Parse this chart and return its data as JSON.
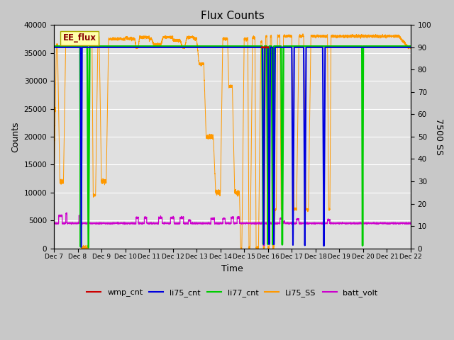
{
  "title": "Flux Counts",
  "xlabel": "Time",
  "ylabel_left": "Counts",
  "ylabel_right": "7500 SS",
  "ylim_left": [
    0,
    40000
  ],
  "ylim_right": [
    0,
    100
  ],
  "annotation_text": "EE_flux",
  "bg_color": "#c8c8c8",
  "plot_bg_color": "#e0e0e0",
  "colors": {
    "wmp_cnt": "#cc0000",
    "li75_cnt": "#0000dd",
    "li77_cnt": "#00cc00",
    "Li75_SS": "#ff9900",
    "batt_volt": "#cc00cc"
  },
  "xtick_labels": [
    "Dec 7",
    "Dec 8",
    "Dec 9",
    "Dec 10",
    "Dec 11",
    "Dec 12",
    "Dec 13",
    "Dec 14",
    "Dec 15",
    "Dec 16",
    "Dec 17",
    "Dec 18",
    "Dec 19",
    "Dec 20",
    "Dec 21",
    "Dec 22"
  ],
  "yticks_left": [
    0,
    5000,
    10000,
    15000,
    20000,
    25000,
    30000,
    35000,
    40000
  ],
  "yticks_right": [
    0,
    10,
    20,
    30,
    40,
    50,
    60,
    70,
    80,
    90,
    100
  ]
}
